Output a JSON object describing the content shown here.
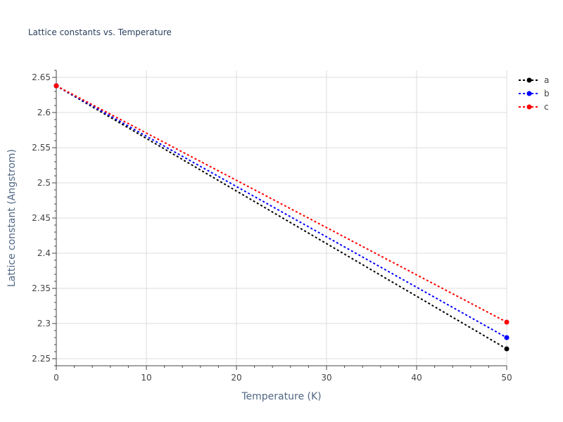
{
  "chart_data": {
    "type": "line",
    "title": "Lattice constants vs. Temperature",
    "xlabel": "Temperature (K)",
    "ylabel": "Lattice constant (Angstrom)",
    "xlim": [
      0,
      50
    ],
    "ylim": [
      2.24,
      2.66
    ],
    "x_ticks": [
      0,
      10,
      20,
      30,
      40,
      50
    ],
    "y_ticks": [
      2.25,
      2.3,
      2.35,
      2.4,
      2.45,
      2.5,
      2.55,
      2.6,
      2.65
    ],
    "grid": true,
    "legend_position": "top-right",
    "x": [
      0,
      50
    ],
    "series": [
      {
        "name": "a",
        "values": [
          2.638,
          2.264
        ],
        "color": "#000000"
      },
      {
        "name": "b",
        "values": [
          2.638,
          2.28
        ],
        "color": "#0000ff"
      },
      {
        "name": "c",
        "values": [
          2.638,
          2.302
        ],
        "color": "#ff0000"
      }
    ]
  }
}
